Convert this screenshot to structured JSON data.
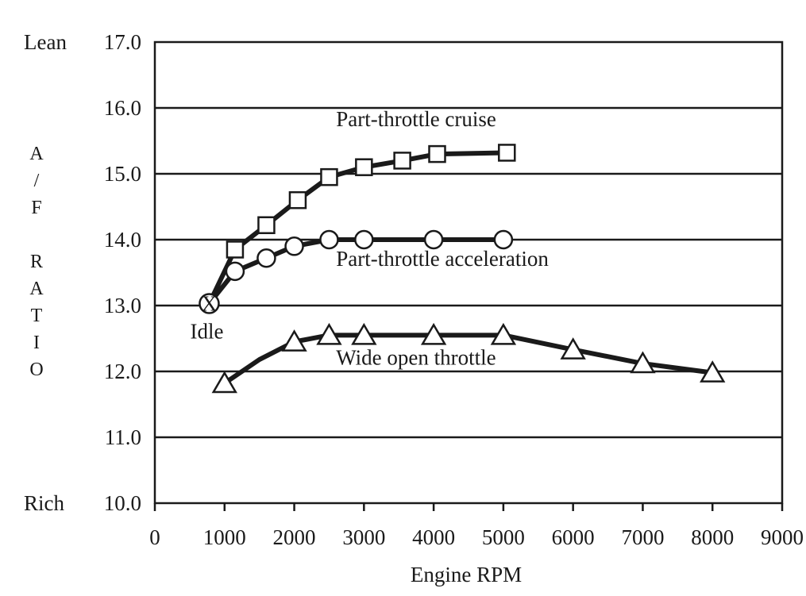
{
  "chart_data": {
    "type": "line",
    "title": "",
    "xlabel": "Engine RPM",
    "ylabel": "A/F RATIO",
    "ylabel_letters": [
      "A",
      "/",
      "F",
      "",
      "R",
      "A",
      "T",
      "I",
      "O"
    ],
    "xlim": [
      0,
      9000
    ],
    "ylim": [
      10.0,
      17.0
    ],
    "x_ticks": [
      0,
      1000,
      2000,
      3000,
      4000,
      5000,
      6000,
      7000,
      8000,
      9000
    ],
    "y_ticks": [
      "10.0",
      "11.0",
      "12.0",
      "13.0",
      "14.0",
      "15.0",
      "16.0",
      "17.0"
    ],
    "y_top_label": "Lean",
    "y_bottom_label": "Rich",
    "grid": "horizontal",
    "series": [
      {
        "name": "Part-throttle cruise",
        "marker": "square",
        "x": [
          1150,
          1600,
          2050,
          2500,
          3000,
          3550,
          4050,
          5050
        ],
        "y": [
          13.85,
          14.22,
          14.6,
          14.95,
          15.1,
          15.2,
          15.3,
          15.32
        ]
      },
      {
        "name": "Part-throttle acceleration",
        "marker": "circle",
        "x": [
          1150,
          1600,
          2000,
          2500,
          3000,
          4000,
          5000
        ],
        "y": [
          13.52,
          13.72,
          13.9,
          14.0,
          14.0,
          14.0,
          14.0
        ]
      },
      {
        "name": "Wide open throttle",
        "marker": "triangle",
        "x": [
          1000,
          1500,
          2000,
          2500,
          3000,
          4000,
          5000,
          6000,
          7000,
          8000
        ],
        "y": [
          11.82,
          12.18,
          12.45,
          12.55,
          12.55,
          12.55,
          12.55,
          12.33,
          12.12,
          11.98
        ],
        "markers_at": [
          0,
          2,
          3,
          4,
          5,
          6,
          7,
          8,
          9
        ]
      }
    ],
    "idle_point": {
      "x": 780,
      "y": 13.03,
      "symbol": "X",
      "label": "Idle"
    },
    "annotations": [
      {
        "text": "Part-throttle cruise",
        "x": 2600,
        "y": 15.72
      },
      {
        "text": "Part-throttle acceleration",
        "x": 2600,
        "y": 13.6
      },
      {
        "text": "Wide open throttle",
        "x": 2600,
        "y": 12.1
      }
    ]
  }
}
